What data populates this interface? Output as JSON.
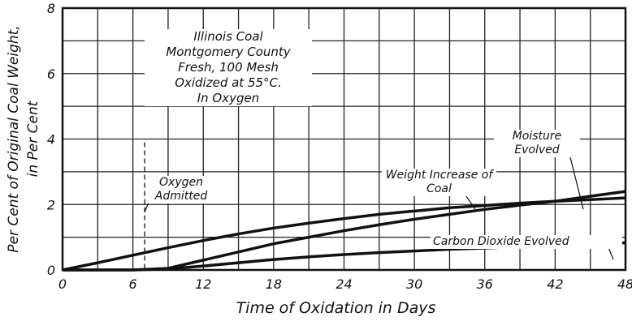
{
  "chart_data": {
    "type": "line",
    "title_lines": [
      "Illinois Coal",
      "Montgomery County",
      "Fresh, 100 Mesh",
      "Oxidized at 55°C.",
      "In Oxygen"
    ],
    "x_label": "Time of Oxidation in Days",
    "y_label_lines": [
      "Per Cent of Original Coal Weight,",
      "in Per Cent"
    ],
    "x": [
      0,
      3,
      6,
      9,
      12,
      15,
      18,
      21,
      24,
      27,
      30,
      33,
      36,
      39,
      42,
      45,
      48
    ],
    "series": [
      {
        "name": "Weight Increase of Coal",
        "color": "#111111",
        "values": [
          0,
          0.22,
          0.45,
          0.68,
          0.9,
          1.1,
          1.28,
          1.43,
          1.57,
          1.7,
          1.8,
          1.9,
          1.97,
          2.04,
          2.1,
          2.15,
          2.2
        ]
      },
      {
        "name": "Moisture Evolved",
        "color": "#111111",
        "values": [
          0,
          0,
          0,
          0.05,
          0.3,
          0.55,
          0.8,
          1.0,
          1.2,
          1.38,
          1.55,
          1.7,
          1.85,
          1.98,
          2.1,
          2.25,
          2.4
        ]
      },
      {
        "name": "Carbon Dioxide Evolved",
        "color": "#111111",
        "values": [
          0,
          0,
          0,
          0.03,
          0.12,
          0.22,
          0.32,
          0.4,
          0.47,
          0.53,
          0.58,
          0.63,
          0.67,
          0.71,
          0.75,
          0.79,
          0.83
        ]
      }
    ],
    "annotations": [
      {
        "text": "Oxygen Admitted",
        "x": 7
      }
    ],
    "xlim": [
      0,
      48
    ],
    "xticks": [
      0,
      6,
      12,
      18,
      24,
      30,
      36,
      42,
      48
    ],
    "ylim": [
      0,
      8
    ],
    "yticks": [
      0,
      2,
      4,
      6,
      8
    ],
    "grid": true
  }
}
